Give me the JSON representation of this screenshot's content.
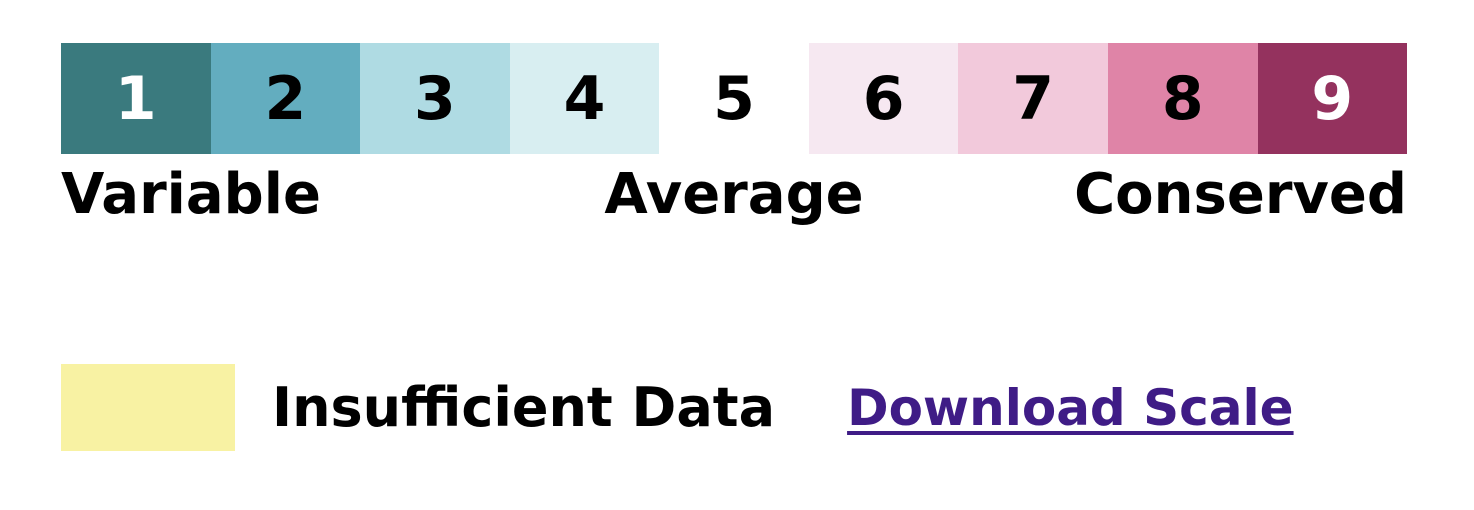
{
  "scale": {
    "cells": [
      {
        "label": "1",
        "bg": "#3a7a7e",
        "fg": "#ffffff"
      },
      {
        "label": "2",
        "bg": "#63adbf",
        "fg": "#000000"
      },
      {
        "label": "3",
        "bg": "#afdbe3",
        "fg": "#000000"
      },
      {
        "label": "4",
        "bg": "#d8eef1",
        "fg": "#000000"
      },
      {
        "label": "5",
        "bg": "#ffffff",
        "fg": "#000000"
      },
      {
        "label": "6",
        "bg": "#f6e8f1",
        "fg": "#000000"
      },
      {
        "label": "7",
        "bg": "#f2c9db",
        "fg": "#000000"
      },
      {
        "label": "8",
        "bg": "#df84a7",
        "fg": "#000000"
      },
      {
        "label": "9",
        "bg": "#94325e",
        "fg": "#ffffff"
      }
    ],
    "label_left": "Variable",
    "label_mid": "Average",
    "label_right": "Conserved"
  },
  "legend": {
    "insufficient_label": "Insufficient Data",
    "insufficient_color": "#f8f2a3",
    "download_label": "Download Scale",
    "link_color": "#3f1c86"
  }
}
